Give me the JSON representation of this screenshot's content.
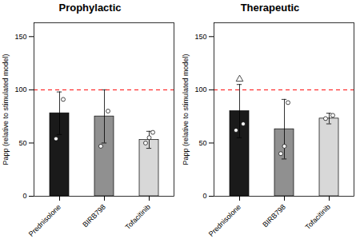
{
  "chart_data": [
    {
      "type": "bar",
      "title": "Prophylactic",
      "categories": [
        "Prednisolone",
        "BIRB798",
        "Tofacitinib"
      ],
      "values": [
        78,
        75,
        53
      ],
      "error_upper": [
        20,
        25,
        8
      ],
      "error_lower": [
        20,
        25,
        8
      ],
      "colors": [
        "#1a1a1a",
        "#909090",
        "#d8d8d8"
      ],
      "points": [
        [
          54,
          91
        ],
        [
          47,
          80
        ],
        [
          50,
          55,
          60
        ]
      ],
      "triangle_points": [],
      "reference_line": {
        "y": 100,
        "color": "#ff0000",
        "line_style": "dashed"
      },
      "ylabel": "Papp (relative to stimulated model)",
      "ylim": [
        0,
        163
      ],
      "yticks": [
        0,
        50,
        100,
        150
      ],
      "grid": false
    },
    {
      "type": "bar",
      "title": "Therapeutic",
      "categories": [
        "Prednisolone",
        "BIRB798",
        "Tofacitinib"
      ],
      "values": [
        80,
        63,
        73
      ],
      "error_upper": [
        25,
        28,
        5
      ],
      "error_lower": [
        25,
        28,
        5
      ],
      "colors": [
        "#1a1a1a",
        "#909090",
        "#d8d8d8"
      ],
      "points": [
        [
          62,
          68
        ],
        [
          40,
          47,
          88
        ],
        [
          73,
          76
        ]
      ],
      "triangle_points": [
        {
          "category": "Prednisolone",
          "value": 110
        }
      ],
      "reference_line": {
        "y": 100,
        "color": "#ff0000",
        "line_style": "dashed"
      },
      "ylabel": "Papp (relative to stimulated model)",
      "ylim": [
        0,
        163
      ],
      "yticks": [
        0,
        50,
        100,
        150
      ],
      "grid": false
    }
  ]
}
